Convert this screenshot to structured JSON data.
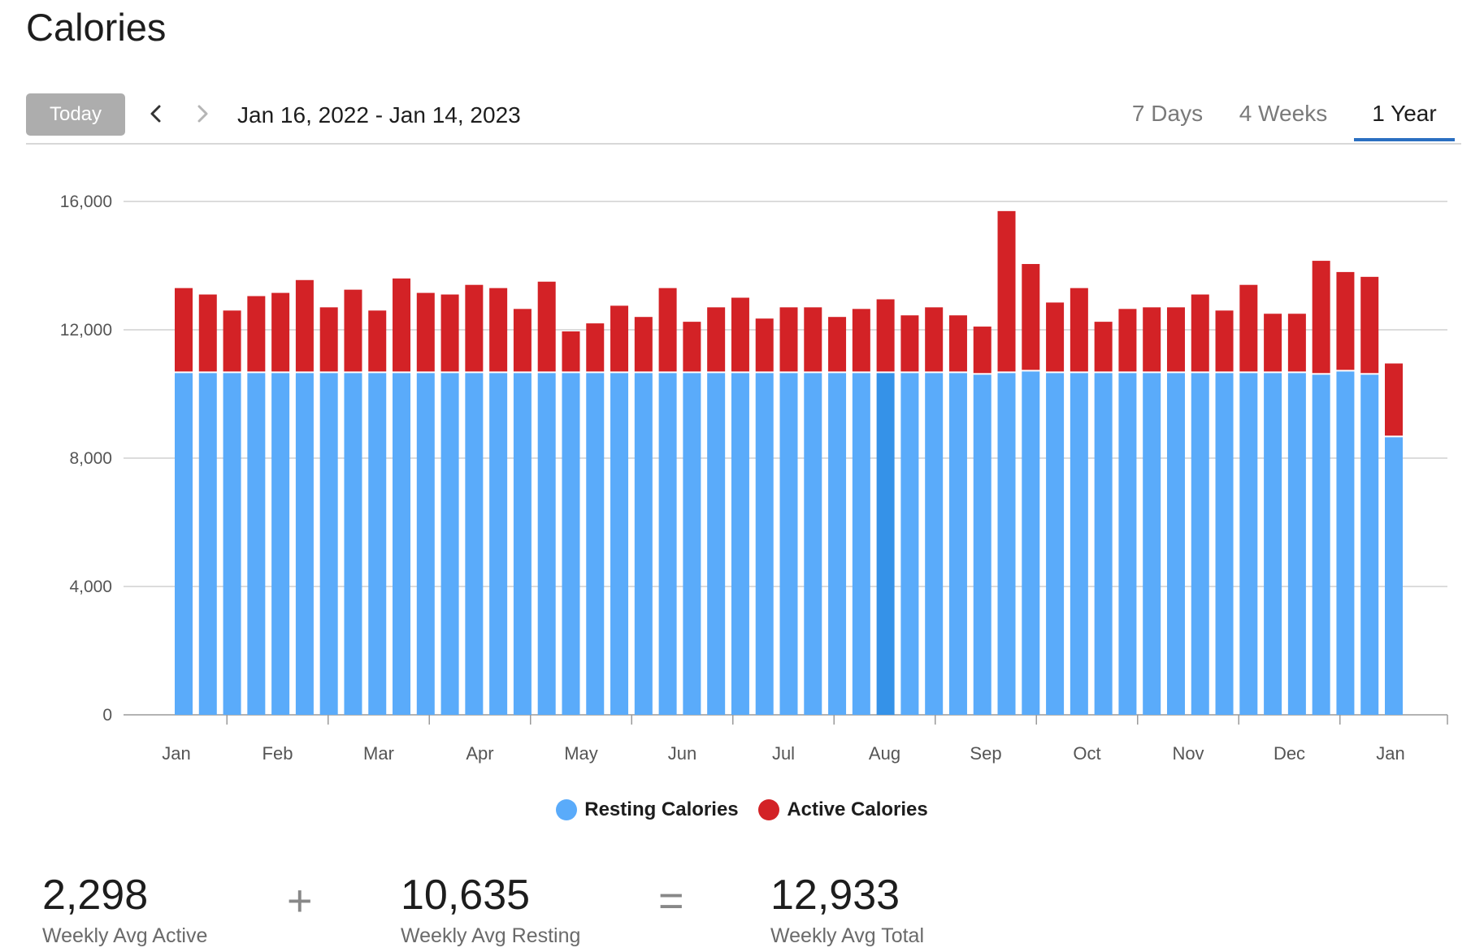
{
  "page": {
    "title": "Calories"
  },
  "toolbar": {
    "today_label": "Today",
    "date_range": "Jan 16, 2022 - Jan 14, 2023",
    "tabs": [
      {
        "label": "7 Days",
        "selected": false
      },
      {
        "label": "4 Weeks",
        "selected": false
      },
      {
        "label": "1 Year",
        "selected": true
      }
    ]
  },
  "chart_data": {
    "type": "bar",
    "stacked": true,
    "ylim": [
      0,
      16000
    ],
    "yticks": [
      0,
      4000,
      8000,
      12000,
      16000
    ],
    "ytick_labels": [
      "0",
      "4,000",
      "8,000",
      "12,000",
      "16,000"
    ],
    "month_labels": [
      "Jan",
      "Feb",
      "Mar",
      "Apr",
      "May",
      "Jun",
      "Jul",
      "Aug",
      "Sep",
      "Oct",
      "Nov",
      "Dec",
      "Jan"
    ],
    "grid": true,
    "legend_position": "bottom",
    "highlighted_week_index": 29,
    "series": [
      {
        "name": "Resting Calories",
        "color": "#5aabfa",
        "values": [
          10650,
          10650,
          10650,
          10650,
          10650,
          10650,
          10650,
          10650,
          10650,
          10650,
          10650,
          10650,
          10650,
          10650,
          10650,
          10650,
          10650,
          10650,
          10650,
          10650,
          10650,
          10650,
          10650,
          10650,
          10650,
          10650,
          10650,
          10650,
          10650,
          10650,
          10650,
          10650,
          10650,
          10600,
          10650,
          10700,
          10650,
          10650,
          10650,
          10650,
          10650,
          10650,
          10650,
          10650,
          10650,
          10650,
          10650,
          10600,
          10700,
          10600,
          8650
        ]
      },
      {
        "name": "Active Calories",
        "color": "#d32226",
        "values": [
          2650,
          2450,
          1950,
          2400,
          2500,
          2900,
          2050,
          2600,
          1950,
          2950,
          2500,
          2450,
          2750,
          2650,
          2000,
          2850,
          1300,
          1550,
          2100,
          1750,
          2650,
          1600,
          2050,
          2350,
          1700,
          2050,
          2050,
          1750,
          2000,
          2300,
          1800,
          2050,
          1800,
          1500,
          5050,
          3350,
          2200,
          2650,
          1600,
          2000,
          2050,
          2050,
          2450,
          1950,
          2750,
          1850,
          1850,
          3550,
          3100,
          3050,
          2300
        ]
      }
    ]
  },
  "summary": {
    "active": {
      "value": "2,298",
      "label": "Weekly Avg Active"
    },
    "plus": "+",
    "resting": {
      "value": "10,635",
      "label": "Weekly Avg Resting"
    },
    "equals": "=",
    "total": {
      "value": "12,933",
      "label": "Weekly Avg Total"
    }
  }
}
